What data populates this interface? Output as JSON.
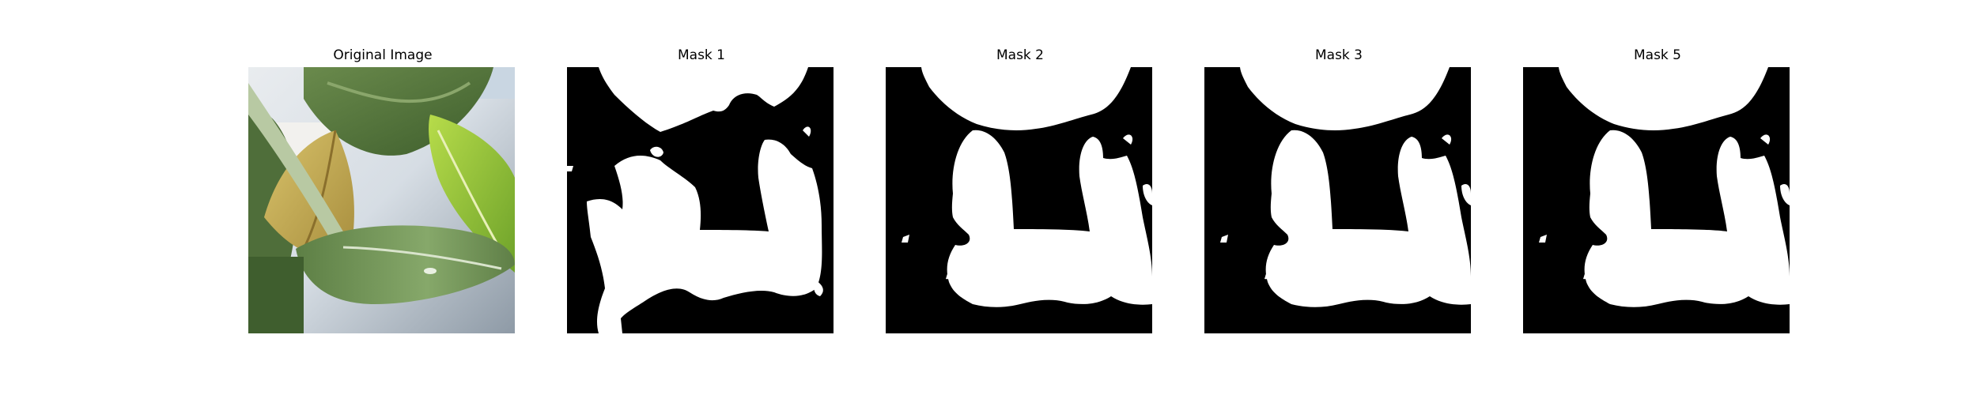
{
  "figure": {
    "panels": [
      {
        "title": "Original Image",
        "kind": "photo"
      },
      {
        "title": "Mask 1",
        "kind": "mask"
      },
      {
        "title": "Mask 2",
        "kind": "mask"
      },
      {
        "title": "Mask 3",
        "kind": "mask"
      },
      {
        "title": "Mask 5",
        "kind": "mask"
      }
    ]
  },
  "colors": {
    "mask_foreground": "#ffffff",
    "mask_background": "#000000",
    "leaf_dark_green": "#4f6f3a",
    "leaf_light_green": "#9ccc3a",
    "leaf_yellow": "#c8b45a",
    "background_pale": "#dfe6ec"
  }
}
